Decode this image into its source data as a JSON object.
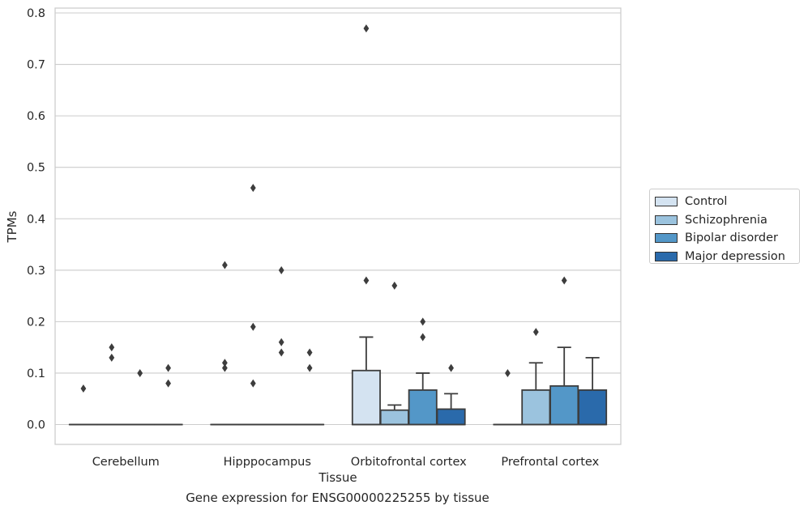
{
  "caption": "Gene expression for ENSG00000225255 by tissue",
  "chart_data": {
    "type": "box",
    "title": "",
    "xlabel": "Tissue",
    "ylabel": "TPMs",
    "ylim": [
      -0.038,
      0.812
    ],
    "yticks": [
      0.0,
      0.1,
      0.2,
      0.3,
      0.4,
      0.5,
      0.6,
      0.7,
      0.8
    ],
    "ytick_labels": [
      "0.0",
      "0.1",
      "0.2",
      "0.3",
      "0.4",
      "0.5",
      "0.6",
      "0.7",
      "0.8"
    ],
    "grid": "horizontal",
    "legend_position": "right",
    "categories": [
      "Cerebellum",
      "Hipppocampus",
      "Orbitofrontal cortex",
      "Prefrontal cortex"
    ],
    "series": [
      {
        "name": "Control",
        "color": "#d4e3f1",
        "boxes": [
          {
            "q1": 0,
            "median": 0,
            "q3": 0,
            "whisker_low": 0,
            "whisker_high": 0,
            "outliers": [
              0.07
            ]
          },
          {
            "q1": 0,
            "median": 0,
            "q3": 0,
            "whisker_low": 0,
            "whisker_high": 0,
            "outliers": [
              0.11,
              0.12,
              0.31
            ]
          },
          {
            "q1": 0,
            "median": 0,
            "q3": 0.105,
            "whisker_low": 0,
            "whisker_high": 0.17,
            "outliers": [
              0.77,
              0.28
            ]
          },
          {
            "q1": 0,
            "median": 0,
            "q3": 0,
            "whisker_low": 0,
            "whisker_high": 0,
            "outliers": [
              0.1
            ]
          }
        ]
      },
      {
        "name": "Schizophrenia",
        "color": "#9bc3de",
        "boxes": [
          {
            "q1": 0,
            "median": 0,
            "q3": 0,
            "whisker_low": 0,
            "whisker_high": 0,
            "outliers": [
              0.13,
              0.15
            ]
          },
          {
            "q1": 0,
            "median": 0,
            "q3": 0,
            "whisker_low": 0,
            "whisker_high": 0,
            "outliers": [
              0.08,
              0.19,
              0.46
            ]
          },
          {
            "q1": 0,
            "median": 0,
            "q3": 0.028,
            "whisker_low": 0,
            "whisker_high": 0.038,
            "outliers": [
              0.27
            ]
          },
          {
            "q1": 0,
            "median": 0,
            "q3": 0.067,
            "whisker_low": 0,
            "whisker_high": 0.12,
            "outliers": [
              0.18
            ]
          }
        ]
      },
      {
        "name": "Bipolar disorder",
        "color": "#5397c8",
        "boxes": [
          {
            "q1": 0,
            "median": 0,
            "q3": 0,
            "whisker_low": 0,
            "whisker_high": 0,
            "outliers": [
              0.1
            ]
          },
          {
            "q1": 0,
            "median": 0,
            "q3": 0,
            "whisker_low": 0,
            "whisker_high": 0,
            "outliers": [
              0.14,
              0.16,
              0.3
            ]
          },
          {
            "q1": 0,
            "median": 0,
            "q3": 0.067,
            "whisker_low": 0,
            "whisker_high": 0.1,
            "outliers": [
              0.17,
              0.2
            ]
          },
          {
            "q1": 0,
            "median": 0,
            "q3": 0.075,
            "whisker_low": 0,
            "whisker_high": 0.15,
            "outliers": [
              0.28
            ]
          }
        ]
      },
      {
        "name": "Major depression",
        "color": "#2a6aab",
        "boxes": [
          {
            "q1": 0,
            "median": 0,
            "q3": 0,
            "whisker_low": 0,
            "whisker_high": 0,
            "outliers": [
              0.08,
              0.11
            ]
          },
          {
            "q1": 0,
            "median": 0,
            "q3": 0,
            "whisker_low": 0,
            "whisker_high": 0,
            "outliers": [
              0.11,
              0.14
            ]
          },
          {
            "q1": 0,
            "median": 0,
            "q3": 0.03,
            "whisker_low": 0,
            "whisker_high": 0.06,
            "outliers": [
              0.11
            ]
          },
          {
            "q1": 0,
            "median": 0,
            "q3": 0.067,
            "whisker_low": 0,
            "whisker_high": 0.13,
            "outliers": []
          }
        ]
      }
    ]
  }
}
